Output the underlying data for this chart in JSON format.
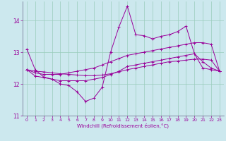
{
  "xlabel": "Windchill (Refroidissement éolien,°C)",
  "bg_color": "#cce8ee",
  "grid_color": "#99ccbb",
  "line_color": "#990099",
  "spine_color": "#666688",
  "xlim": [
    -0.5,
    23.5
  ],
  "ylim": [
    11,
    14.6
  ],
  "yticks": [
    11,
    12,
    13,
    14
  ],
  "xticks": [
    0,
    1,
    2,
    3,
    4,
    5,
    6,
    7,
    8,
    9,
    10,
    11,
    12,
    13,
    14,
    15,
    16,
    17,
    18,
    19,
    20,
    21,
    22,
    23
  ],
  "series": [
    [
      13.1,
      12.45,
      12.22,
      12.15,
      12.0,
      11.95,
      11.75,
      11.45,
      11.55,
      11.9,
      13.0,
      13.8,
      14.45,
      13.55,
      13.52,
      13.42,
      13.5,
      13.55,
      13.65,
      13.82,
      12.95,
      12.7,
      12.5,
      12.4
    ],
    [
      12.45,
      12.25,
      12.2,
      12.15,
      12.1,
      12.1,
      12.1,
      12.1,
      12.15,
      12.2,
      12.3,
      12.4,
      12.55,
      12.6,
      12.65,
      12.7,
      12.75,
      12.8,
      12.85,
      12.9,
      12.95,
      12.5,
      12.45,
      12.4
    ],
    [
      12.45,
      12.35,
      12.3,
      12.3,
      12.3,
      12.35,
      12.4,
      12.45,
      12.5,
      12.6,
      12.7,
      12.8,
      12.9,
      12.95,
      13.0,
      13.05,
      13.1,
      13.15,
      13.2,
      13.25,
      13.3,
      13.3,
      13.25,
      12.4
    ],
    [
      12.45,
      12.4,
      12.38,
      12.35,
      12.32,
      12.3,
      12.28,
      12.26,
      12.26,
      12.28,
      12.32,
      12.38,
      12.45,
      12.5,
      12.55,
      12.6,
      12.65,
      12.7,
      12.72,
      12.75,
      12.78,
      12.78,
      12.75,
      12.4
    ]
  ]
}
